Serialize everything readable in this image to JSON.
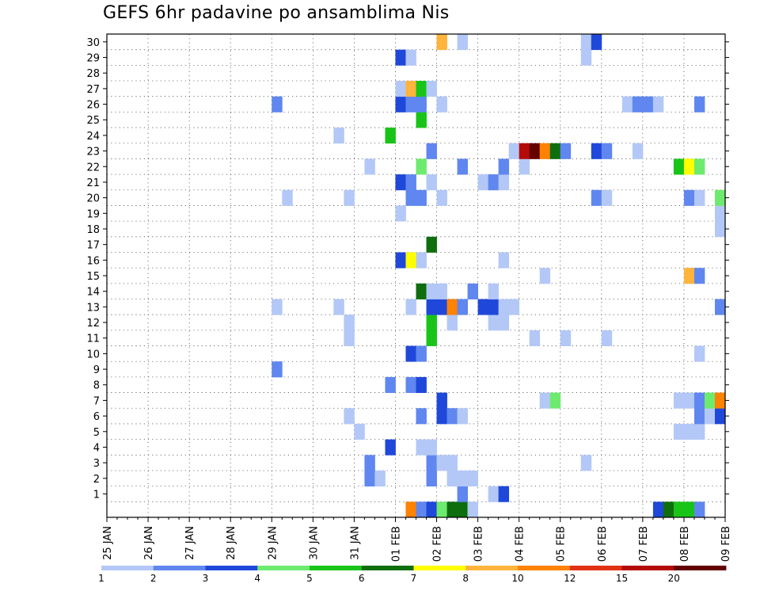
{
  "chart_data": {
    "type": "heatmap",
    "title": "GEFS 6hr padavine po ansamblima Nis",
    "xlabel": "",
    "ylabel": "",
    "x_tick_labels": [
      "25 JAN",
      "26 JAN",
      "27 JAN",
      "28 JAN",
      "29 JAN",
      "30 JAN",
      "31 JAN",
      "01 FEB",
      "02 FEB",
      "03 FEB",
      "04 FEB",
      "05 FEB",
      "06 FEB",
      "07 FEB",
      "08 FEB",
      "09 FEB"
    ],
    "x_time_steps_6h": 60,
    "y_tick_labels": [
      "1",
      "2",
      "3",
      "4",
      "5",
      "6",
      "7",
      "8",
      "9",
      "10",
      "11",
      "12",
      "13",
      "14",
      "15",
      "16",
      "17",
      "18",
      "19",
      "20",
      "21",
      "22",
      "23",
      "24",
      "25",
      "26",
      "27",
      "28",
      "29",
      "30"
    ],
    "y_rows": 31,
    "colorbar": {
      "labels": [
        "1",
        "2",
        "3",
        "4",
        "5",
        "6",
        "7",
        "8",
        "10",
        "12",
        "15",
        "20"
      ],
      "colors": [
        "#b3c8f7",
        "#5f87ef",
        "#1f48da",
        "#6eeb6e",
        "#19c419",
        "#0e6e0e",
        "#ffff00",
        "#ffb43c",
        "#ff8200",
        "#e13214",
        "#b40a0a",
        "#640000"
      ]
    },
    "note_levels": "cell values are colorbar class indices (1-12); row 0 = control run",
    "cells": [
      [
        0,
        29,
        9
      ],
      [
        0,
        30,
        2
      ],
      [
        0,
        31,
        3
      ],
      [
        0,
        32,
        4
      ],
      [
        0,
        33,
        6
      ],
      [
        0,
        34,
        6
      ],
      [
        0,
        35,
        1
      ],
      [
        0,
        53,
        3
      ],
      [
        0,
        54,
        6
      ],
      [
        0,
        55,
        5
      ],
      [
        0,
        56,
        5
      ],
      [
        0,
        57,
        2
      ],
      [
        1,
        34,
        2
      ],
      [
        1,
        37,
        1
      ],
      [
        1,
        38,
        3
      ],
      [
        2,
        25,
        2
      ],
      [
        2,
        26,
        1
      ],
      [
        2,
        31,
        2
      ],
      [
        2,
        33,
        1
      ],
      [
        2,
        34,
        1
      ],
      [
        2,
        35,
        1
      ],
      [
        3,
        25,
        2
      ],
      [
        3,
        31,
        2
      ],
      [
        3,
        32,
        1
      ],
      [
        3,
        33,
        1
      ],
      [
        3,
        46,
        1
      ],
      [
        4,
        27,
        3
      ],
      [
        4,
        30,
        1
      ],
      [
        4,
        31,
        1
      ],
      [
        5,
        24,
        1
      ],
      [
        5,
        55,
        1
      ],
      [
        5,
        56,
        1
      ],
      [
        5,
        57,
        1
      ],
      [
        6,
        23,
        1
      ],
      [
        6,
        30,
        2
      ],
      [
        6,
        32,
        3
      ],
      [
        6,
        33,
        2
      ],
      [
        6,
        34,
        1
      ],
      [
        6,
        57,
        2
      ],
      [
        6,
        58,
        1
      ],
      [
        6,
        59,
        3
      ],
      [
        7,
        32,
        3
      ],
      [
        7,
        42,
        1
      ],
      [
        7,
        43,
        4
      ],
      [
        7,
        55,
        1
      ],
      [
        7,
        56,
        1
      ],
      [
        7,
        57,
        2
      ],
      [
        7,
        58,
        4
      ],
      [
        7,
        59,
        9
      ],
      [
        8,
        27,
        2
      ],
      [
        8,
        29,
        2
      ],
      [
        8,
        30,
        3
      ],
      [
        9,
        16,
        2
      ],
      [
        10,
        29,
        3
      ],
      [
        10,
        30,
        2
      ],
      [
        10,
        57,
        1
      ],
      [
        11,
        23,
        1
      ],
      [
        11,
        31,
        5
      ],
      [
        11,
        41,
        1
      ],
      [
        11,
        44,
        1
      ],
      [
        11,
        48,
        1
      ],
      [
        12,
        23,
        1
      ],
      [
        12,
        31,
        5
      ],
      [
        12,
        33,
        1
      ],
      [
        12,
        37,
        1
      ],
      [
        12,
        38,
        1
      ],
      [
        13,
        16,
        1
      ],
      [
        13,
        22,
        1
      ],
      [
        13,
        29,
        1
      ],
      [
        13,
        31,
        3
      ],
      [
        13,
        32,
        3
      ],
      [
        13,
        33,
        9
      ],
      [
        13,
        34,
        2
      ],
      [
        13,
        36,
        3
      ],
      [
        13,
        37,
        3
      ],
      [
        13,
        38,
        1
      ],
      [
        13,
        39,
        1
      ],
      [
        13,
        59,
        2
      ],
      [
        14,
        30,
        6
      ],
      [
        14,
        31,
        1
      ],
      [
        14,
        32,
        1
      ],
      [
        14,
        35,
        2
      ],
      [
        14,
        37,
        1
      ],
      [
        15,
        42,
        1
      ],
      [
        15,
        56,
        8
      ],
      [
        15,
        57,
        2
      ],
      [
        16,
        28,
        3
      ],
      [
        16,
        29,
        7
      ],
      [
        16,
        30,
        1
      ],
      [
        16,
        38,
        1
      ],
      [
        17,
        31,
        6
      ],
      [
        18,
        59,
        1
      ],
      [
        19,
        28,
        1
      ],
      [
        19,
        59,
        1
      ],
      [
        20,
        17,
        1
      ],
      [
        20,
        23,
        1
      ],
      [
        20,
        29,
        2
      ],
      [
        20,
        30,
        2
      ],
      [
        20,
        32,
        1
      ],
      [
        20,
        47,
        2
      ],
      [
        20,
        48,
        1
      ],
      [
        20,
        56,
        2
      ],
      [
        20,
        57,
        1
      ],
      [
        20,
        59,
        4
      ],
      [
        21,
        28,
        3
      ],
      [
        21,
        29,
        2
      ],
      [
        21,
        31,
        1
      ],
      [
        21,
        36,
        1
      ],
      [
        21,
        37,
        2
      ],
      [
        21,
        38,
        1
      ],
      [
        22,
        25,
        1
      ],
      [
        22,
        30,
        4
      ],
      [
        22,
        34,
        2
      ],
      [
        22,
        38,
        2
      ],
      [
        22,
        40,
        1
      ],
      [
        22,
        55,
        5
      ],
      [
        22,
        56,
        7
      ],
      [
        22,
        57,
        4
      ],
      [
        23,
        31,
        2
      ],
      [
        23,
        39,
        1
      ],
      [
        23,
        40,
        11
      ],
      [
        23,
        41,
        12
      ],
      [
        23,
        42,
        9
      ],
      [
        23,
        43,
        6
      ],
      [
        23,
        44,
        2
      ],
      [
        23,
        47,
        3
      ],
      [
        23,
        48,
        2
      ],
      [
        23,
        51,
        1
      ],
      [
        24,
        22,
        1
      ],
      [
        24,
        27,
        5
      ],
      [
        25,
        30,
        5
      ],
      [
        26,
        16,
        2
      ],
      [
        26,
        28,
        3
      ],
      [
        26,
        29,
        2
      ],
      [
        26,
        30,
        2
      ],
      [
        26,
        32,
        1
      ],
      [
        26,
        50,
        1
      ],
      [
        26,
        51,
        2
      ],
      [
        26,
        52,
        2
      ],
      [
        26,
        53,
        1
      ],
      [
        26,
        57,
        2
      ],
      [
        27,
        28,
        1
      ],
      [
        27,
        29,
        8
      ],
      [
        27,
        30,
        5
      ],
      [
        27,
        31,
        1
      ],
      [
        29,
        28,
        3
      ],
      [
        29,
        29,
        1
      ],
      [
        29,
        46,
        1
      ],
      [
        30,
        32,
        8
      ],
      [
        30,
        34,
        1
      ],
      [
        30,
        46,
        1
      ],
      [
        30,
        47,
        3
      ]
    ]
  }
}
